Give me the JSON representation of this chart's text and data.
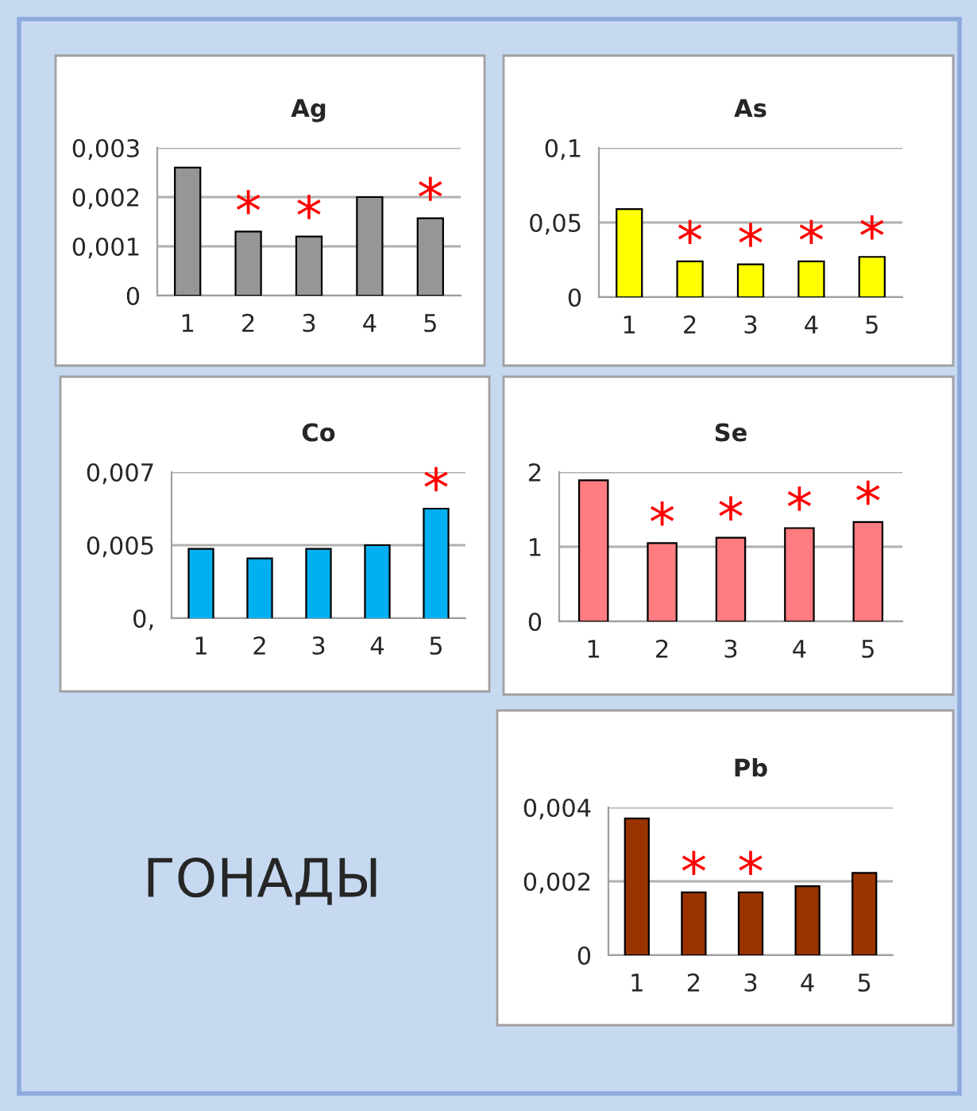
{
  "chart_data": [
    {
      "type": "bar",
      "title": "Ag",
      "categories": [
        "1",
        "2",
        "3",
        "4",
        "5"
      ],
      "values": [
        0.0026,
        0.0013,
        0.0012,
        0.002,
        0.00157
      ],
      "color": "#969696",
      "ylim": [
        0,
        0.003
      ],
      "yticks": [
        0,
        {
          "value": 0.001,
          "label": "0,001"
        },
        {
          "value": 0.002,
          "label": "0,002"
        },
        {
          "value": 0.003,
          "label": "0,003"
        }
      ],
      "grid": "y",
      "annotations": [
        {
          "text": "*",
          "x": "2",
          "y": 0.0013
        },
        {
          "text": "*",
          "x": "3",
          "y": 0.0012
        },
        {
          "text": "*",
          "x": "5",
          "y": 0.00157
        }
      ]
    },
    {
      "type": "bar",
      "title": "As",
      "categories": [
        "1",
        "2",
        "3",
        "4",
        "5"
      ],
      "values": [
        0.059,
        0.024,
        0.022,
        0.024,
        0.027
      ],
      "color": "#ffff00",
      "ylim": [
        0,
        0.1
      ],
      "yticks": [
        0,
        {
          "value": 0.05,
          "label": "0,05"
        },
        {
          "value": 0.1,
          "label": "0,1"
        }
      ],
      "grid": "y",
      "annotations": [
        {
          "text": "*",
          "x": "2",
          "y": 0.024
        },
        {
          "text": "*",
          "x": "3",
          "y": 0.022
        },
        {
          "text": "*",
          "x": "4",
          "y": 0.024
        },
        {
          "text": "*",
          "x": "5",
          "y": 0.027
        }
      ]
    },
    {
      "type": "bar",
      "title": "Co",
      "categories": [
        "1",
        "2",
        "3",
        "4",
        "5"
      ],
      "values": [
        0.0049,
        0.00464,
        0.0049,
        0.005,
        0.006
      ],
      "color": "#00b0f0",
      "ylim": [
        0.003,
        0.007
      ],
      "yticks": [
        {
          "value": 0.003,
          "label": "0,"
        },
        {
          "value": 0.005,
          "label": "0,005"
        },
        {
          "value": 0.007,
          "label": "0,007"
        }
      ],
      "grid": "y",
      "annotations": [
        {
          "text": "*",
          "x": "5",
          "y": 0.006
        }
      ]
    },
    {
      "type": "bar",
      "title": "Se",
      "categories": [
        "1",
        "2",
        "3",
        "4",
        "5"
      ],
      "values": [
        1.89,
        1.05,
        1.12,
        1.25,
        1.33
      ],
      "color": "#ff7c80",
      "ylim": [
        0,
        2
      ],
      "yticks": [
        0,
        1,
        2
      ],
      "grid": "y",
      "annotations": [
        {
          "text": "*",
          "x": "2",
          "y": 1.05
        },
        {
          "text": "*",
          "x": "3",
          "y": 1.12
        },
        {
          "text": "*",
          "x": "4",
          "y": 1.25
        },
        {
          "text": "*",
          "x": "5",
          "y": 1.33
        }
      ]
    },
    {
      "type": "other",
      "annotations": [
        "ГОНАДЫ"
      ]
    },
    {
      "type": "bar",
      "title": "Pb",
      "categories": [
        "1",
        "2",
        "3",
        "4",
        "5"
      ],
      "values": [
        0.0037,
        0.0017,
        0.0017,
        0.00187,
        0.00223
      ],
      "color": "#993300",
      "ylim": [
        0,
        0.004
      ],
      "yticks": [
        0,
        {
          "value": 0.002,
          "label": "0,002"
        },
        {
          "value": 0.004,
          "label": "0,004"
        }
      ],
      "grid": "y",
      "annotations": [
        {
          "text": "*",
          "x": "2",
          "y": 0.0017
        },
        {
          "text": "*",
          "x": "3",
          "y": 0.0017
        }
      ]
    }
  ]
}
